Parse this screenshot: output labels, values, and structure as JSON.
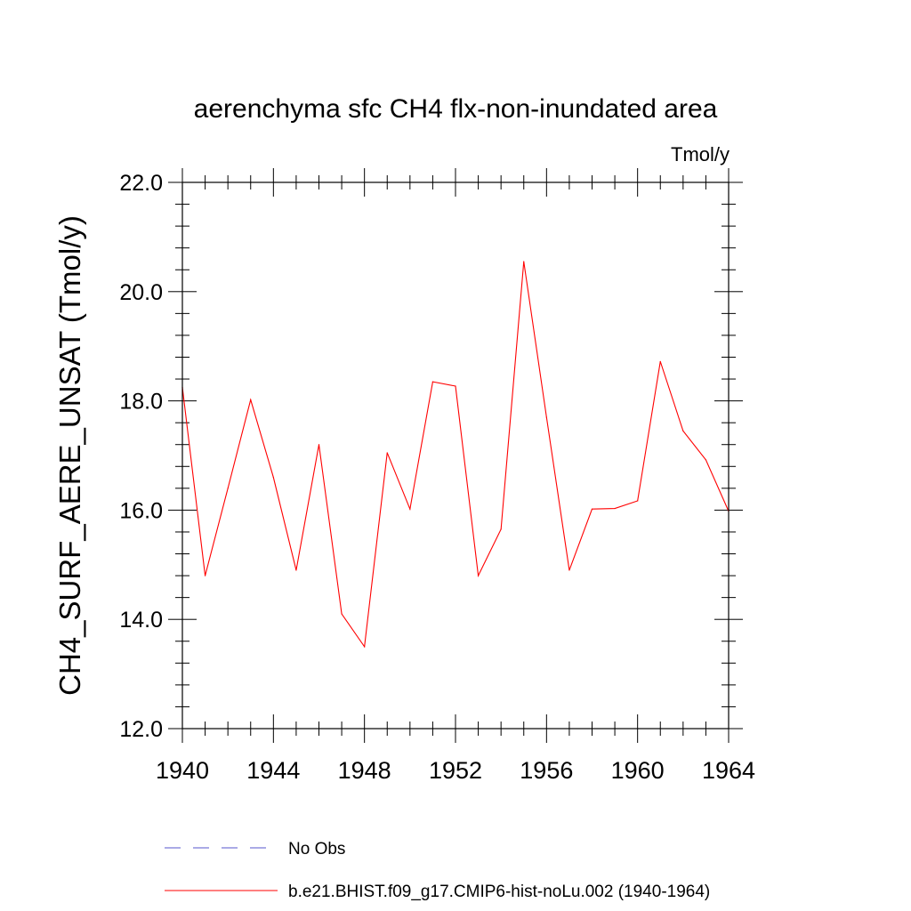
{
  "chart_data": {
    "type": "line",
    "title": "aerenchyma sfc CH4 flx-non-inundated area",
    "units": "Tmol/y",
    "ylabel": "CH4_SURF_AERE_UNSAT  (Tmol/y)",
    "xlabel": "",
    "xlim": [
      1940,
      1964
    ],
    "ylim": [
      12.0,
      22.0
    ],
    "xticks": [
      1940,
      1944,
      1948,
      1952,
      1956,
      1960,
      1964
    ],
    "xtick_labels": [
      "1940",
      "1944",
      "1948",
      "1952",
      "1956",
      "1960",
      "1964"
    ],
    "yticks": [
      12.0,
      14.0,
      16.0,
      18.0,
      20.0,
      22.0
    ],
    "ytick_labels": [
      "12.0",
      "14.0",
      "16.0",
      "18.0",
      "20.0",
      "22.0"
    ],
    "grid": false,
    "legend_position": "bottom",
    "series": [
      {
        "name": "b.e21.BHIST.f09_g17.CMIP6-hist-noLu.002 (1940-1964)",
        "color": "#ff0000",
        "style": "solid",
        "x": [
          1940,
          1941,
          1942,
          1943,
          1944,
          1945,
          1946,
          1947,
          1948,
          1949,
          1950,
          1951,
          1952,
          1953,
          1954,
          1955,
          1956,
          1957,
          1958,
          1959,
          1960,
          1961,
          1962,
          1963,
          1964
        ],
        "values": [
          18.25,
          14.8,
          16.4,
          18.02,
          16.6,
          14.9,
          17.2,
          14.1,
          13.5,
          17.05,
          16.02,
          18.35,
          18.27,
          14.8,
          15.65,
          20.55,
          17.7,
          14.9,
          16.02,
          16.03,
          16.17,
          18.72,
          17.45,
          16.92,
          15.98
        ]
      }
    ],
    "legend": [
      {
        "label": "No Obs",
        "color": "#5555cc",
        "style": "dashed"
      },
      {
        "label": "b.e21.BHIST.f09_g17.CMIP6-hist-noLu.002 (1940-1964)",
        "color": "#ff0000",
        "style": "solid"
      }
    ]
  }
}
